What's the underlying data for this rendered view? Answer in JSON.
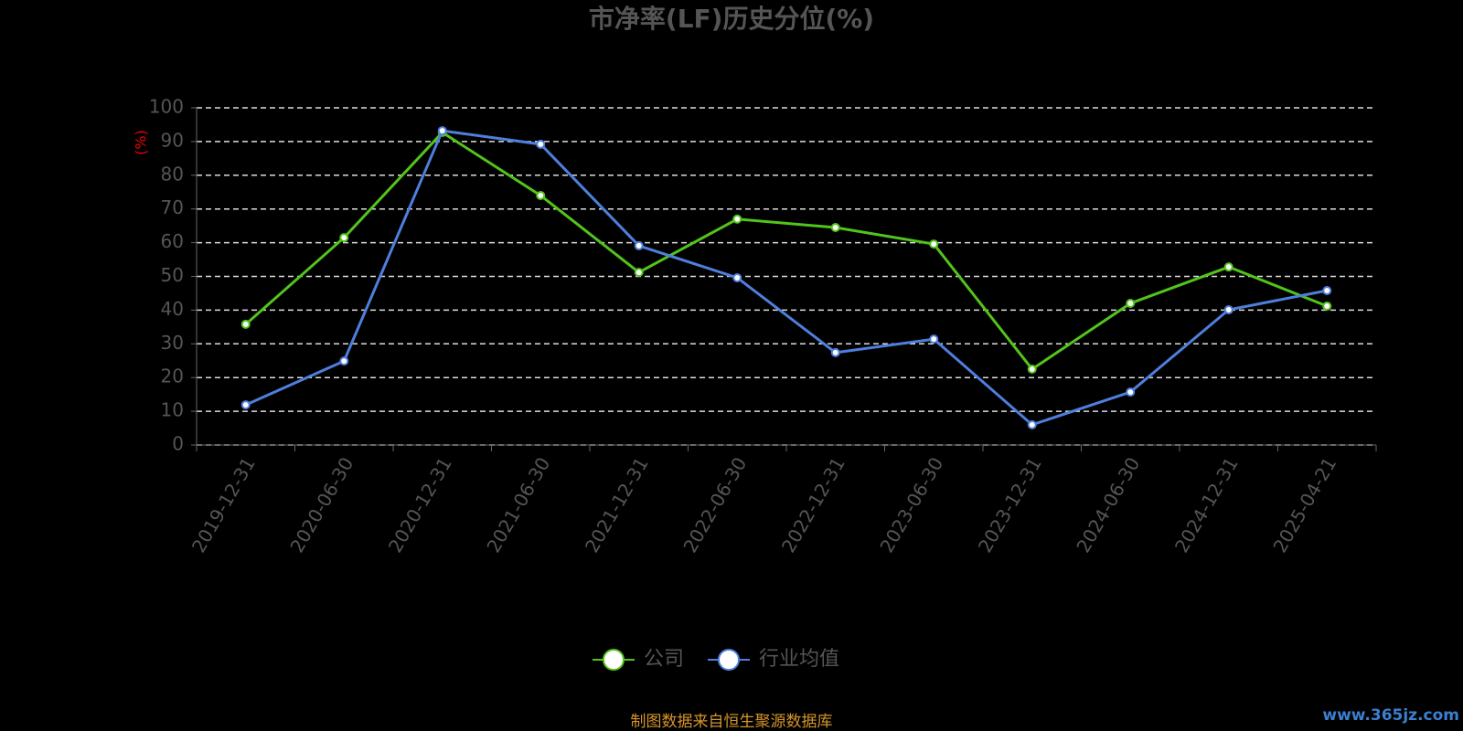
{
  "chart_data": {
    "type": "line",
    "title": "市净率(LF)历史分位(%)",
    "y_label": "(%)",
    "categories": [
      "2019-12-31",
      "2020-06-30",
      "2020-12-31",
      "2021-06-30",
      "2021-12-31",
      "2022-06-30",
      "2022-12-31",
      "2023-06-30",
      "2023-12-31",
      "2024-06-30",
      "2024-12-31",
      "2025-04-21"
    ],
    "series": [
      {
        "name": "公司",
        "color": "#52c41a",
        "values": [
          35.8,
          61.5,
          92.7,
          74,
          51.2,
          67,
          64.5,
          59.6,
          22.5,
          42,
          52.8,
          41.2
        ]
      },
      {
        "name": "行业均值",
        "color": "#4e7fdd",
        "values": [
          11.9,
          24.9,
          93.2,
          89.2,
          59.1,
          49.6,
          27.4,
          31.4,
          6,
          15.7,
          40.1,
          45.8
        ]
      }
    ],
    "ylim": [
      0,
      100
    ],
    "yticks": [
      0,
      10,
      20,
      30,
      40,
      50,
      60,
      70,
      80,
      90,
      100
    ],
    "grid": true,
    "legend": "bottom",
    "source": "制图数据来自恒生聚源数据库",
    "watermark": "www.365jz.com"
  }
}
